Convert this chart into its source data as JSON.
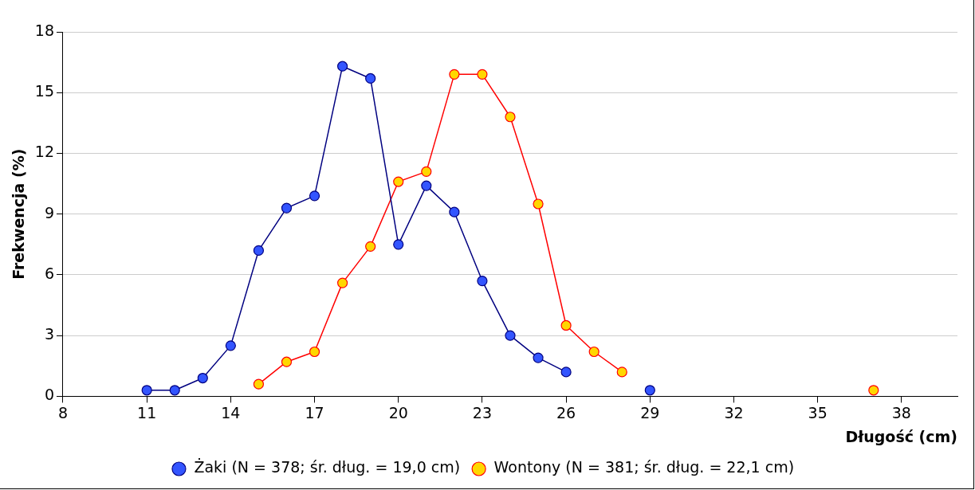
{
  "chart_data": {
    "type": "line",
    "xlabel": "Długość (cm)",
    "ylabel": "Frekwencja (%)",
    "series": [
      {
        "name": "Żaki (N = 378; śr. dług. = 19,0 cm)",
        "color": "#000080",
        "x": [
          11,
          12,
          13,
          14,
          15,
          16,
          17,
          18,
          19,
          20,
          21,
          22,
          23,
          24,
          25,
          26,
          27,
          28,
          29
        ],
        "values": [
          0.3,
          0.3,
          0.9,
          2.5,
          7.2,
          9.3,
          9.9,
          16.3,
          15.7,
          7.5,
          10.4,
          9.1,
          5.7,
          3.0,
          1.9,
          1.2,
          null,
          null,
          0.3
        ],
        "colors": [
          "#3355ff",
          "#3355ff",
          "#3355ff",
          "#3355ff",
          "#3355ff",
          "#3355ff",
          "#3355ff",
          "#3355ff",
          "#3355ff",
          "#3355ff",
          "#3355ff",
          "#3355ff",
          "#3355ff",
          "#3355ff",
          "#3355ff",
          "#3355ff",
          "#3355ff",
          "#3355ff",
          "#3355ff"
        ]
      },
      {
        "name": "Wontony (N = 381; śr. dług. = 22,1 cm)",
        "color": "#ff0000",
        "x": [
          15,
          16,
          17,
          18,
          19,
          20,
          21,
          22,
          23,
          24,
          25,
          26,
          27,
          28,
          29,
          30,
          31,
          32,
          33,
          34,
          35,
          36,
          37
        ],
        "values": [
          0.6,
          1.7,
          2.2,
          5.6,
          7.4,
          10.6,
          11.1,
          15.9,
          15.9,
          13.8,
          9.5,
          3.5,
          2.2,
          1.2,
          null,
          null,
          null,
          null,
          null,
          null,
          null,
          null,
          0.3
        ],
        "colors": [
          "#ffd700",
          "#ffd700",
          "#ffd700",
          "#ffd700",
          "#ffd700",
          "#ffd700",
          "#ffd700",
          "#ffd700",
          "#ffd700",
          "#ffd700",
          "#ffd700",
          "#ffd700",
          "#ffd700",
          "#ffd700",
          "#ffd700",
          "#ffd700",
          "#ffd700",
          "#ffd700",
          "#ffd700",
          "#ffd700",
          "#ffd700",
          "#ffd700",
          "#ffd700"
        ]
      }
    ],
    "xlim": [
      8,
      40
    ],
    "xticks": [
      8,
      11,
      14,
      17,
      20,
      23,
      26,
      29,
      32,
      35,
      38
    ],
    "ylim": [
      0,
      18
    ],
    "yticks": [
      0,
      3,
      6,
      9,
      12,
      15,
      18
    ],
    "grid": "y",
    "legend": "bottom",
    "marker": "circle",
    "line_style": "solid"
  }
}
